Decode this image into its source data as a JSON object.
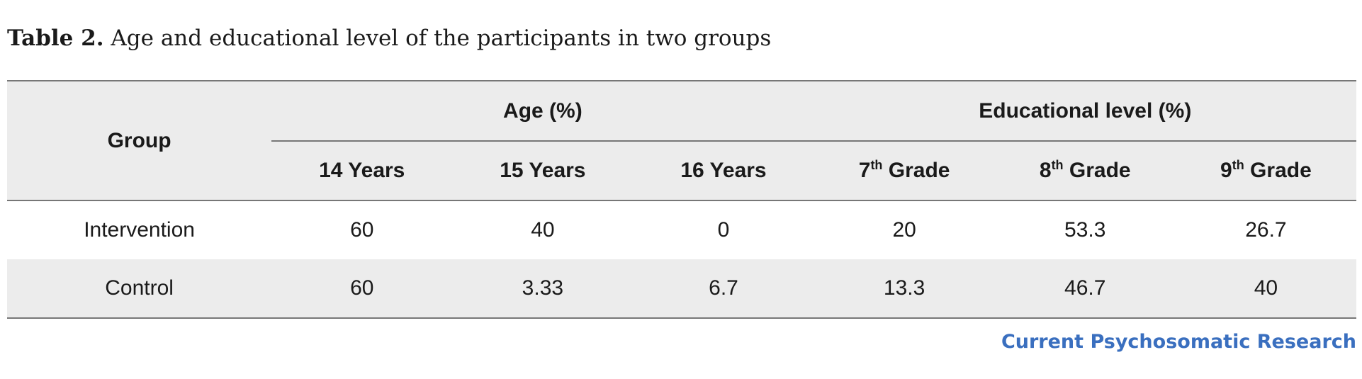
{
  "caption": {
    "label": "Table 2.",
    "text": "Age and educational level of the participants in two groups"
  },
  "table": {
    "group_header": "Group",
    "age_header": "Age (%)",
    "edu_header": "Educational level (%)",
    "age_columns": [
      "14 Years",
      "15 Years",
      "16 Years"
    ],
    "edu_columns": [
      {
        "num": "7",
        "sup": "th",
        "rest": " Grade"
      },
      {
        "num": "8",
        "sup": "th",
        "rest": " Grade"
      },
      {
        "num": "9",
        "sup": "th",
        "rest": " Grade"
      }
    ],
    "rows": [
      {
        "group": "Intervention",
        "values": [
          "60",
          "40",
          "0",
          "20",
          "53.3",
          "26.7"
        ]
      },
      {
        "group": "Control",
        "values": [
          "60",
          "3.33",
          "6.7",
          "13.3",
          "46.7",
          "40"
        ]
      }
    ]
  },
  "footer": {
    "journal": "Current Psychosomatic Research"
  },
  "colors": {
    "header_bg": "#ececec",
    "rule": "#777777",
    "journal_blue": "#3a6fbf"
  }
}
